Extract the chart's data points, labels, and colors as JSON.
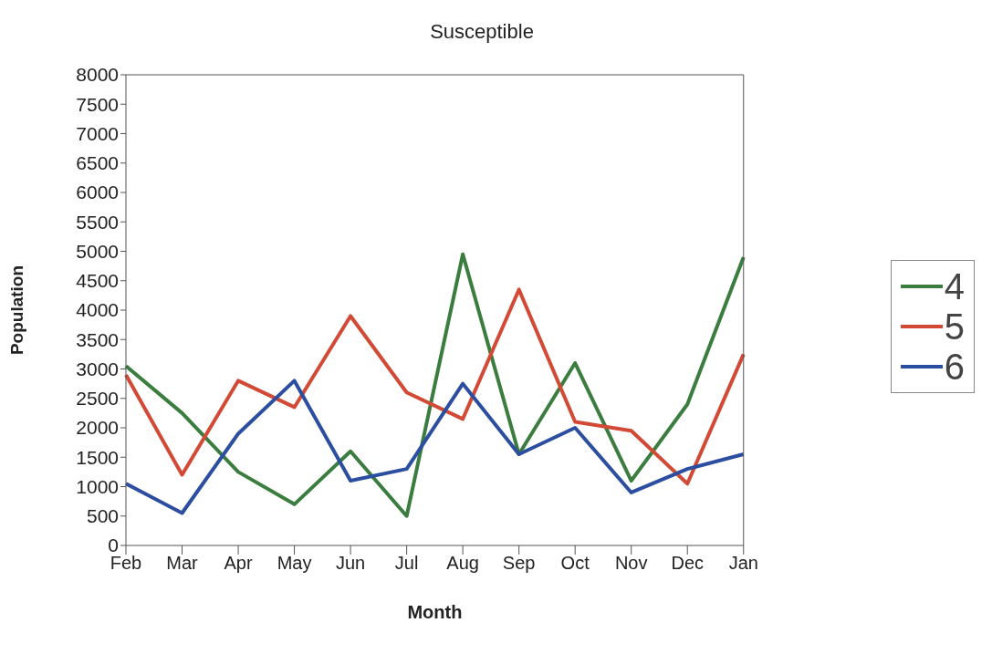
{
  "chart_data": {
    "type": "line",
    "title": "Susceptible",
    "xlabel": "Month",
    "ylabel": "Population",
    "categories": [
      "Feb",
      "Mar",
      "Apr",
      "May",
      "Jun",
      "Jul",
      "Aug",
      "Sep",
      "Oct",
      "Nov",
      "Dec",
      "Jan"
    ],
    "series": [
      {
        "name": "4",
        "color": "#3a7d3f",
        "values": [
          3050,
          2250,
          1250,
          700,
          1600,
          500,
          4950,
          1550,
          3100,
          1100,
          2400,
          4900
        ]
      },
      {
        "name": "5",
        "color": "#d24a35",
        "values": [
          2900,
          1200,
          2800,
          2350,
          3900,
          2600,
          2150,
          4350,
          2100,
          1950,
          1050,
          3250
        ]
      },
      {
        "name": "6",
        "color": "#2b4ea0",
        "values": [
          1050,
          550,
          1900,
          2800,
          1100,
          1300,
          2750,
          1550,
          2000,
          900,
          1300,
          1550
        ]
      }
    ],
    "ylim": [
      0,
      8000
    ],
    "yticks": [
      0,
      500,
      1000,
      1500,
      2000,
      2500,
      3000,
      3500,
      4000,
      4500,
      5000,
      5500,
      6000,
      6500,
      7000,
      7500,
      8000
    ],
    "grid": false,
    "legend": "right",
    "marker": "none",
    "line_style": "solid"
  }
}
